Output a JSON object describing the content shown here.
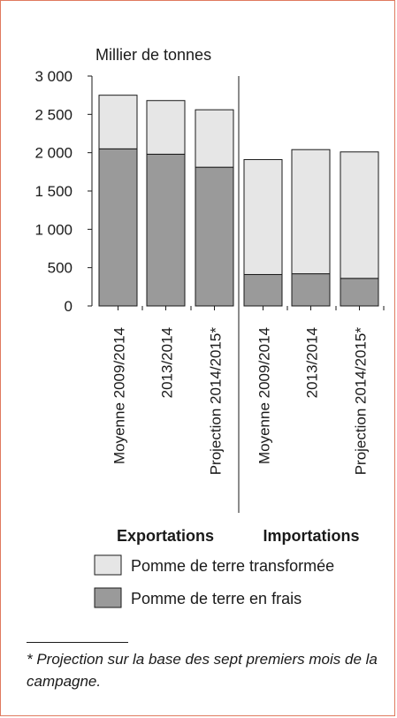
{
  "chart_data": {
    "type": "bar",
    "stacked": true,
    "ylabel": "Millier de tonnes",
    "ylim": [
      0,
      3000
    ],
    "yticks": [
      "3 000",
      "2 500",
      "2 000",
      "1 500",
      "1 000",
      "500",
      "0"
    ],
    "ytick_values": [
      3000,
      2500,
      2000,
      1500,
      1000,
      500,
      0
    ],
    "groups": [
      {
        "name": "Exportations",
        "categories": [
          "Moyenne 2009/2014",
          "2013/2014",
          "Projection 2014/2015*"
        ]
      },
      {
        "name": "Importations",
        "categories": [
          "Moyenne 2009/2014",
          "2013/2014",
          "Projection 2014/2015*"
        ]
      }
    ],
    "series": [
      {
        "name": "Pomme de terre en frais",
        "color": "#9a9a9a",
        "values": [
          2050,
          1980,
          1810,
          410,
          420,
          360
        ]
      },
      {
        "name": "Pomme de terre transformée",
        "color": "#e6e6e6",
        "values": [
          700,
          700,
          750,
          1500,
          1620,
          1650
        ]
      }
    ],
    "legend": {
      "placement": "bottom",
      "order": [
        "Pomme de terre transformée",
        "Pomme de terre en frais"
      ]
    },
    "grid": false
  },
  "footnote": "* Projection sur la base des sept premiers mois de la campagne."
}
